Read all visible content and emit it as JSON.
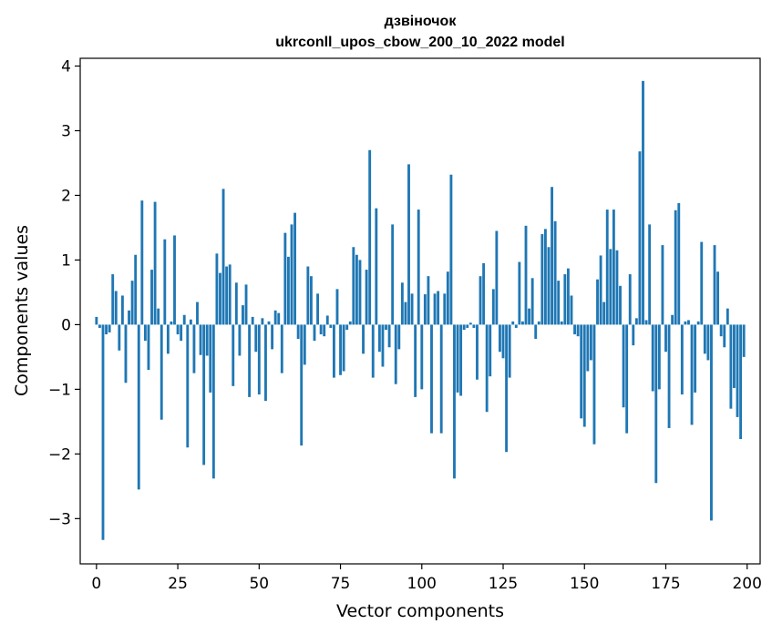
{
  "chart_data": {
    "type": "bar",
    "title": "дзвіночок",
    "subtitle": "ukrconll_upos_cbow_200_10_2022 model",
    "xlabel": "Vector components",
    "ylabel": "Components values",
    "xlim": [
      -5,
      204
    ],
    "ylim": [
      -3.7,
      4.12
    ],
    "xticks": [
      0,
      25,
      50,
      75,
      100,
      125,
      150,
      175,
      200
    ],
    "xtick_labels": [
      "0",
      "25",
      "50",
      "75",
      "100",
      "125",
      "150",
      "175",
      "200"
    ],
    "yticks": [
      -3,
      -2,
      -1,
      0,
      1,
      2,
      3,
      4
    ],
    "ytick_labels": [
      "−3",
      "−2",
      "−1",
      "0",
      "1",
      "2",
      "3",
      "4"
    ],
    "grid": false,
    "bar_color": "#1f77b4",
    "x": [
      0,
      1,
      2,
      3,
      4,
      5,
      6,
      7,
      8,
      9,
      10,
      11,
      12,
      13,
      14,
      15,
      16,
      17,
      18,
      19,
      20,
      21,
      22,
      23,
      24,
      25,
      26,
      27,
      28,
      29,
      30,
      31,
      32,
      33,
      34,
      35,
      36,
      37,
      38,
      39,
      40,
      41,
      42,
      43,
      44,
      45,
      46,
      47,
      48,
      49,
      50,
      51,
      52,
      53,
      54,
      55,
      56,
      57,
      58,
      59,
      60,
      61,
      62,
      63,
      64,
      65,
      66,
      67,
      68,
      69,
      70,
      71,
      72,
      73,
      74,
      75,
      76,
      77,
      78,
      79,
      80,
      81,
      82,
      83,
      84,
      85,
      86,
      87,
      88,
      89,
      90,
      91,
      92,
      93,
      94,
      95,
      96,
      97,
      98,
      99,
      100,
      101,
      102,
      103,
      104,
      105,
      106,
      107,
      108,
      109,
      110,
      111,
      112,
      113,
      114,
      115,
      116,
      117,
      118,
      119,
      120,
      121,
      122,
      123,
      124,
      125,
      126,
      127,
      128,
      129,
      130,
      131,
      132,
      133,
      134,
      135,
      136,
      137,
      138,
      139,
      140,
      141,
      142,
      143,
      144,
      145,
      146,
      147,
      148,
      149,
      150,
      151,
      152,
      153,
      154,
      155,
      156,
      157,
      158,
      159,
      160,
      161,
      162,
      163,
      164,
      165,
      166,
      167,
      168,
      169,
      170,
      171,
      172,
      173,
      174,
      175,
      176,
      177,
      178,
      179,
      180,
      181,
      182,
      183,
      184,
      185,
      186,
      187,
      188,
      189,
      190,
      191,
      192,
      193,
      194,
      195,
      196,
      197,
      198,
      199
    ],
    "values": [
      0.12,
      -0.05,
      -3.33,
      -0.15,
      -0.12,
      0.78,
      0.52,
      -0.4,
      0.45,
      -0.9,
      0.22,
      0.68,
      1.08,
      -2.55,
      1.92,
      -0.25,
      -0.7,
      0.85,
      1.9,
      0.25,
      -1.47,
      1.32,
      -0.45,
      0.05,
      1.38,
      -0.15,
      -0.25,
      0.15,
      -1.9,
      0.08,
      -0.75,
      0.35,
      -0.47,
      -2.17,
      -0.48,
      -1.05,
      -2.38,
      1.1,
      0.8,
      2.1,
      0.9,
      0.93,
      -0.95,
      0.65,
      -0.48,
      0.3,
      0.62,
      -1.12,
      0.12,
      -0.42,
      -1.08,
      0.1,
      -1.18,
      0.05,
      -0.38,
      0.22,
      0.18,
      -0.75,
      1.42,
      1.05,
      1.55,
      1.73,
      -0.22,
      -1.87,
      -0.62,
      0.9,
      0.75,
      -0.25,
      0.48,
      -0.15,
      -0.18,
      0.14,
      -0.05,
      -0.82,
      0.55,
      -0.78,
      -0.72,
      -0.08,
      0.05,
      1.2,
      1.08,
      1.0,
      -0.45,
      0.85,
      2.7,
      -0.82,
      1.8,
      -0.42,
      -0.65,
      -0.08,
      -0.35,
      1.55,
      -0.92,
      -0.38,
      0.65,
      0.35,
      2.48,
      0.48,
      -1.12,
      1.78,
      -1.0,
      0.47,
      0.75,
      -1.68,
      0.48,
      0.52,
      -1.68,
      0.48,
      0.82,
      2.32,
      -2.38,
      -1.05,
      -1.1,
      -0.08,
      -0.05,
      0.03,
      -0.05,
      -0.85,
      0.75,
      0.95,
      -1.35,
      -0.8,
      0.55,
      1.45,
      -0.42,
      -0.52,
      -1.97,
      -0.82,
      0.05,
      -0.05,
      0.97,
      0.05,
      1.53,
      0.25,
      0.72,
      -0.22,
      0.05,
      1.4,
      1.48,
      1.2,
      2.13,
      1.6,
      0.68,
      0.05,
      0.78,
      0.87,
      0.45,
      -0.15,
      -0.18,
      -1.45,
      -1.58,
      -0.72,
      -0.55,
      -1.85,
      0.7,
      1.07,
      0.35,
      1.78,
      1.17,
      1.78,
      1.15,
      0.6,
      -1.28,
      -1.68,
      0.78,
      -0.32,
      0.1,
      2.68,
      3.77,
      0.07,
      1.55,
      -1.03,
      -2.45,
      -1.0,
      1.23,
      -0.42,
      -1.6,
      0.15,
      1.77,
      1.88,
      -1.08,
      0.05,
      0.07,
      -1.55,
      -1.05,
      0.05,
      1.28,
      -0.45,
      -0.55,
      -3.03,
      1.23,
      0.82,
      -0.18,
      -0.35,
      0.25,
      -1.3,
      -0.98,
      -1.43,
      -1.77,
      -0.5
    ]
  }
}
